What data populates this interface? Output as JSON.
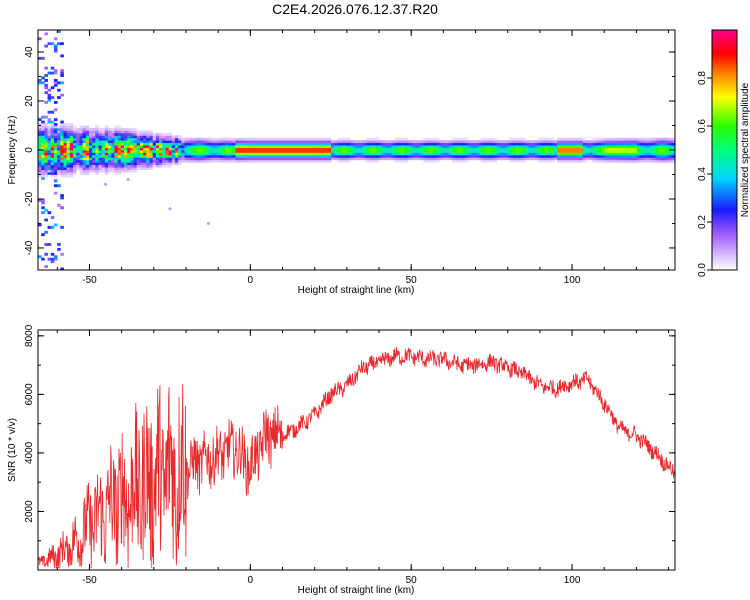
{
  "chart_data": [
    {
      "type": "heatmap",
      "title": "C2E4.2026.076.12.37.R20",
      "xlabel": "Height of straight line (km)",
      "ylabel": "Frequency (Hz)",
      "xlim": [
        -66,
        132
      ],
      "ylim": [
        -49,
        49
      ],
      "xticks": [
        -50,
        0,
        50,
        100
      ],
      "xtick_labels": [
        "-50",
        "0",
        "50",
        "100"
      ],
      "yticks": [
        -40,
        -20,
        0,
        20,
        40
      ],
      "ytick_labels": [
        "-40",
        "-20",
        "0",
        "20",
        "40"
      ],
      "colorbar": {
        "label": "Normalized spectral amplitude",
        "range": [
          0,
          1
        ],
        "ticks": [
          0.0,
          0.2,
          0.4,
          0.6,
          0.8
        ],
        "tick_labels": [
          "0.0",
          "0.2",
          "0.4",
          "0.6",
          "0.8"
        ]
      },
      "band_center_hz": 0,
      "band_halfwidth_hz": [
        [
          -66,
          6
        ],
        [
          -40,
          5
        ],
        [
          -20,
          3
        ],
        [
          0,
          2.5
        ],
        [
          50,
          2.5
        ],
        [
          100,
          2.5
        ],
        [
          132,
          3
        ]
      ],
      "peak_amplitude_regions": [
        [
          -5,
          25,
          0.9
        ],
        [
          95,
          103,
          0.85
        ],
        [
          110,
          120,
          0.7
        ]
      ]
    },
    {
      "type": "line",
      "title": "",
      "xlabel": "Height of straight line (km)",
      "ylabel": "SNR (10 * v/v)",
      "xlim": [
        -66,
        132
      ],
      "ylim": [
        0,
        8200
      ],
      "xticks": [
        -50,
        0,
        50,
        100
      ],
      "xtick_labels": [
        "-50",
        "0",
        "50",
        "100"
      ],
      "yticks": [
        2000,
        4000,
        6000,
        8000
      ],
      "ytick_labels": [
        "2000",
        "4000",
        "6000",
        "8000"
      ],
      "color": "#e8282a",
      "series": [
        {
          "name": "SNR",
          "x": [
            -66,
            -60,
            -55,
            -50,
            -45,
            -40,
            -35,
            -30,
            -25,
            -20,
            -15,
            -10,
            -5,
            0,
            5,
            10,
            15,
            20,
            25,
            30,
            35,
            40,
            45,
            50,
            55,
            60,
            65,
            70,
            75,
            80,
            85,
            90,
            95,
            100,
            105,
            110,
            115,
            120,
            125,
            132
          ],
          "y": [
            200,
            500,
            900,
            1500,
            2000,
            2400,
            2800,
            3100,
            3300,
            3500,
            3700,
            3900,
            4200,
            3500,
            4600,
            4600,
            4900,
            5300,
            6000,
            6300,
            6900,
            7100,
            7300,
            7300,
            7200,
            7200,
            7000,
            7000,
            7100,
            6900,
            6700,
            6300,
            6200,
            6400,
            6500,
            5700,
            4800,
            4600,
            4100,
            3300
          ]
        }
      ]
    }
  ]
}
